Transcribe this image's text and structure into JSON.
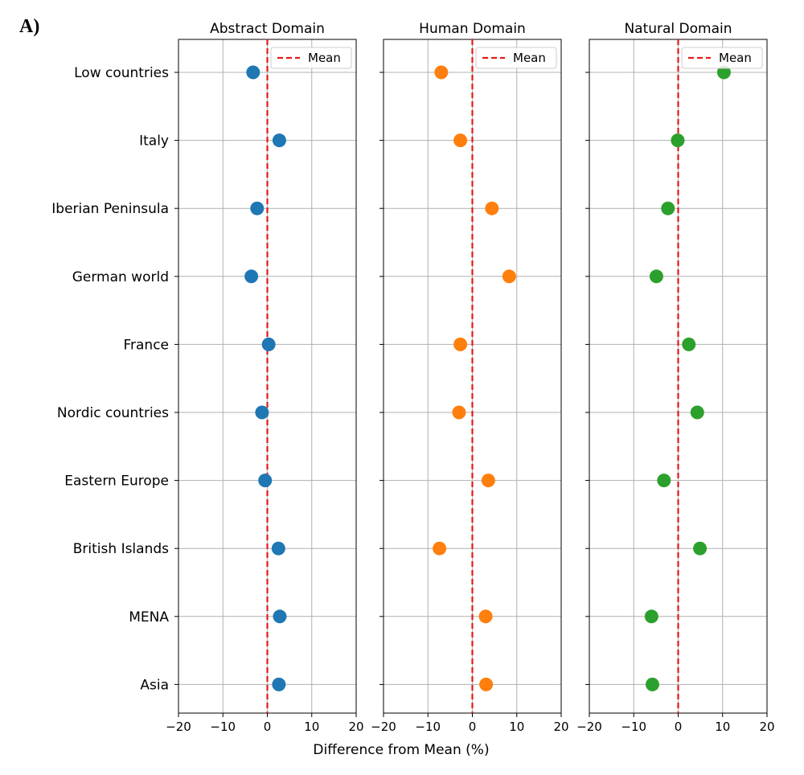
{
  "figure": {
    "panel_label": "A)",
    "shared_xlabel": "Difference from Mean (%)"
  },
  "chart_data": [
    {
      "type": "scatter",
      "title": "Abstract Domain",
      "xlabel": "",
      "ylabel": "",
      "xlim": [
        -20,
        20
      ],
      "xticks": [
        -20,
        -10,
        0,
        10,
        20
      ],
      "grid": true,
      "color": "#1f77b4",
      "categories": [
        "Low countries",
        "Italy",
        "Iberian Peninsula",
        "German world",
        "France",
        "Nordic countries",
        "Eastern Europe",
        "British Islands",
        "MENA",
        "Asia"
      ],
      "values": [
        -3.2,
        2.7,
        -2.3,
        -3.6,
        0.3,
        -1.2,
        -0.5,
        2.5,
        2.8,
        2.6
      ],
      "reference_line": {
        "x": 0,
        "style": "dashed",
        "color": "#e31a1c",
        "label": "Mean"
      },
      "legend": {
        "position": "top-right",
        "entries": [
          "Mean"
        ]
      }
    },
    {
      "type": "scatter",
      "title": "Human Domain",
      "xlabel": "",
      "ylabel": "",
      "xlim": [
        -20,
        20
      ],
      "xticks": [
        -20,
        -10,
        0,
        10,
        20
      ],
      "grid": true,
      "color": "#ff7f0e",
      "categories": [
        "Low countries",
        "Italy",
        "Iberian Peninsula",
        "German world",
        "France",
        "Nordic countries",
        "Eastern Europe",
        "British Islands",
        "MENA",
        "Asia"
      ],
      "values": [
        -7.0,
        -2.7,
        4.4,
        8.3,
        -2.7,
        -3.0,
        3.6,
        -7.4,
        3.0,
        3.1
      ],
      "reference_line": {
        "x": 0,
        "style": "dashed",
        "color": "#e31a1c",
        "label": "Mean"
      },
      "legend": {
        "position": "top-right",
        "entries": [
          "Mean"
        ]
      }
    },
    {
      "type": "scatter",
      "title": "Natural Domain",
      "xlabel": "",
      "ylabel": "",
      "xlim": [
        -20,
        20
      ],
      "xticks": [
        -20,
        -10,
        0,
        10,
        20
      ],
      "grid": true,
      "color": "#2ca02c",
      "categories": [
        "Low countries",
        "Italy",
        "Iberian Peninsula",
        "German world",
        "France",
        "Nordic countries",
        "Eastern Europe",
        "British Islands",
        "MENA",
        "Asia"
      ],
      "values": [
        10.3,
        -0.1,
        -2.3,
        -4.9,
        2.4,
        4.3,
        -3.2,
        4.9,
        -6.0,
        -5.8
      ],
      "reference_line": {
        "x": 0,
        "style": "dashed",
        "color": "#e31a1c",
        "label": "Mean"
      },
      "legend": {
        "position": "top-right",
        "entries": [
          "Mean"
        ]
      }
    }
  ]
}
